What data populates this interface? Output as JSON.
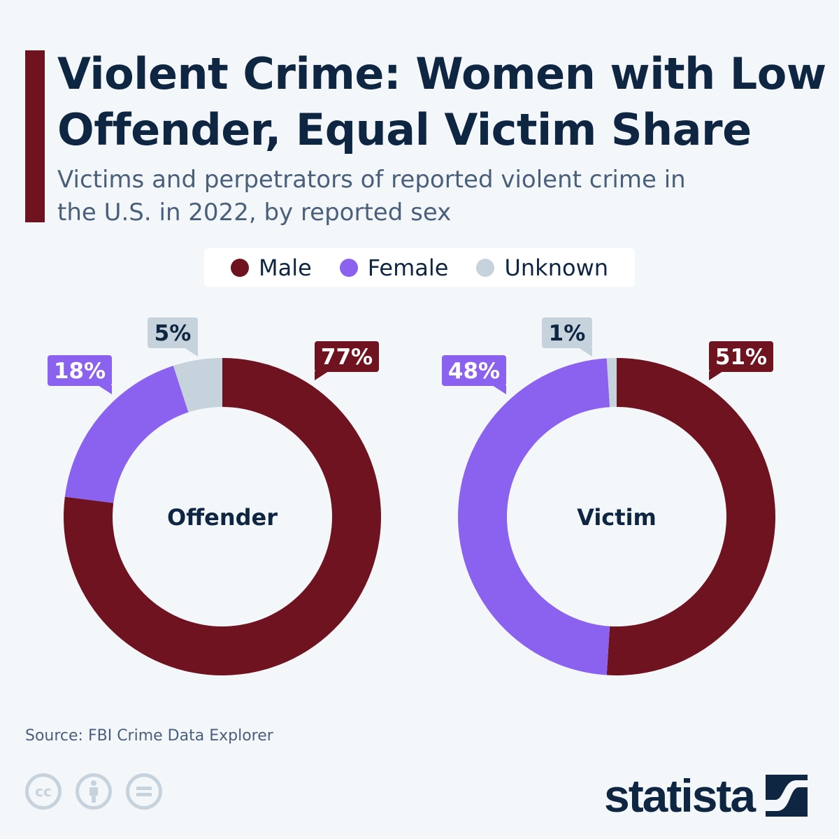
{
  "title": "Violent Crime: Women with Low Offender, Equal Victim Share",
  "subtitle": "Victims and perpetrators of reported violent crime in the U.S. in 2022, by reported sex",
  "legend": [
    {
      "label": "Male",
      "color": "#6f1320"
    },
    {
      "label": "Female",
      "color": "#8b62f0"
    },
    {
      "label": "Unknown",
      "color": "#c6d3dc"
    }
  ],
  "source": "Source: FBI Crime Data Explorer",
  "brand": "statista",
  "license_icons": [
    "cc-icon",
    "attribution-icon",
    "no-derivatives-icon"
  ],
  "chart_data": [
    {
      "type": "pie",
      "variant": "donut",
      "center_label": "Offender",
      "categories": [
        "Male",
        "Female",
        "Unknown"
      ],
      "values": [
        77,
        18,
        5
      ],
      "labels": [
        "77%",
        "18%",
        "5%"
      ],
      "colors": [
        "#6f1320",
        "#8b62f0",
        "#c6d3dc"
      ]
    },
    {
      "type": "pie",
      "variant": "donut",
      "center_label": "Victim",
      "categories": [
        "Male",
        "Female",
        "Unknown"
      ],
      "values": [
        51,
        48,
        1
      ],
      "labels": [
        "51%",
        "48%",
        "1%"
      ],
      "colors": [
        "#6f1320",
        "#8b62f0",
        "#c6d3dc"
      ]
    }
  ]
}
